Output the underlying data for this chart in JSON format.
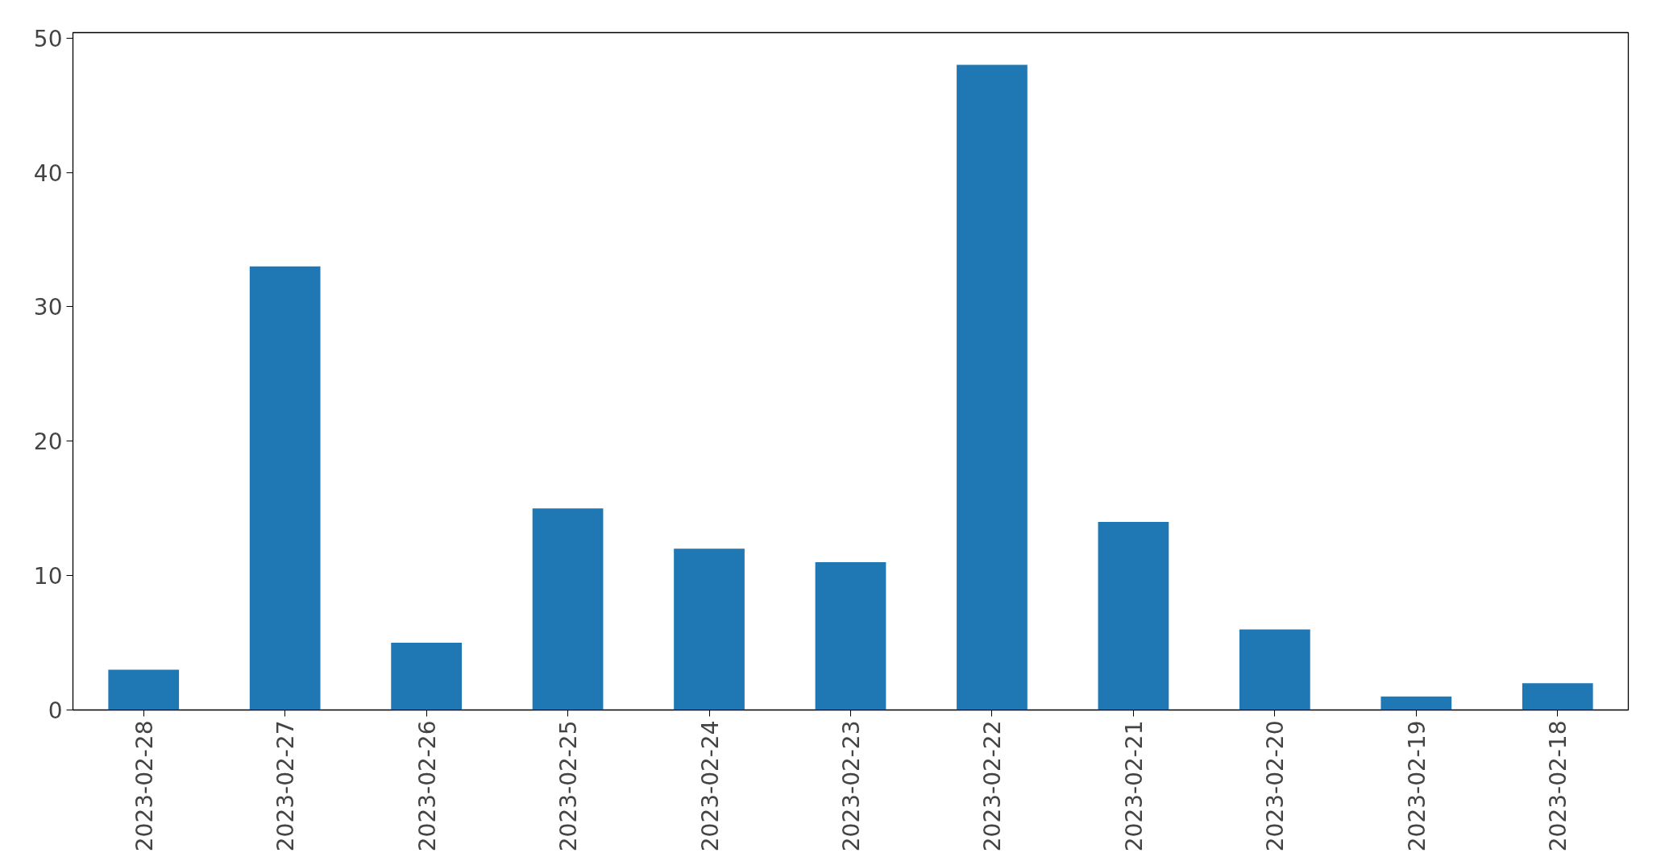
{
  "chart_data": {
    "type": "bar",
    "categories": [
      "2023-02-28",
      "2023-02-27",
      "2023-02-26",
      "2023-02-25",
      "2023-02-24",
      "2023-02-23",
      "2023-02-22",
      "2023-02-21",
      "2023-02-20",
      "2023-02-19",
      "2023-02-18"
    ],
    "values": [
      3,
      33,
      5,
      15,
      12,
      11,
      48,
      14,
      6,
      1,
      2
    ],
    "color": "#1f77b4",
    "ylim": [
      0,
      50.4
    ],
    "yticks": [
      0,
      10,
      20,
      30,
      40,
      50
    ],
    "grid": false
  }
}
